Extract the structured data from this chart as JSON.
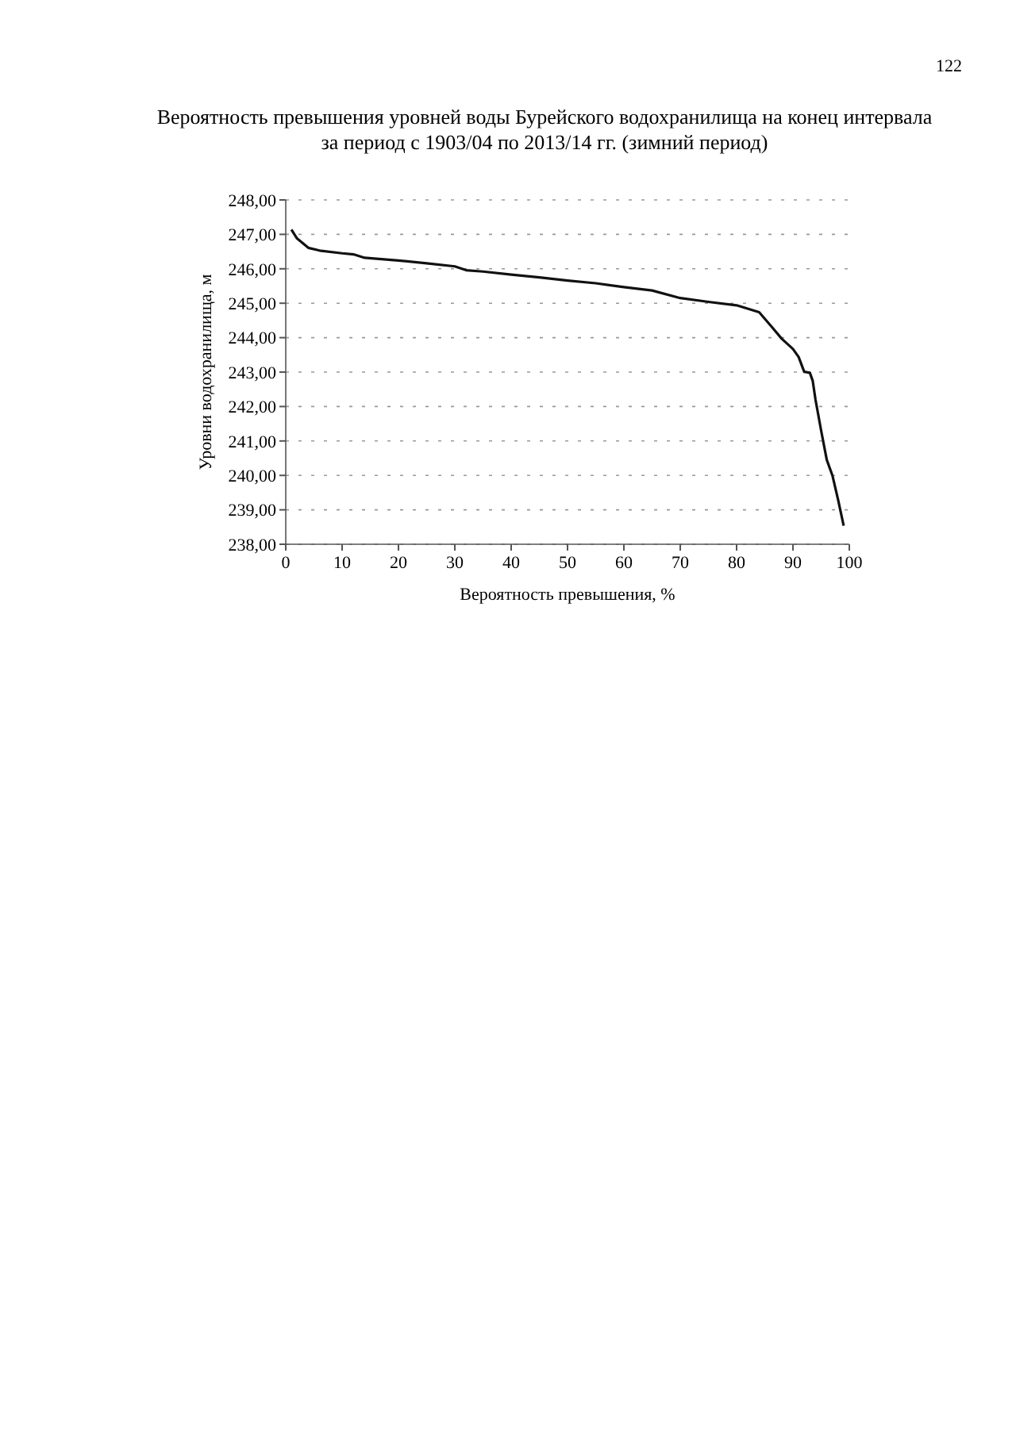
{
  "chart_data": {
    "type": "line",
    "title": "Вероятность превышения уровней воды Бурейского водохранилища на конец интервала\nза период с 1903/04 по 2013/14 гг. (зимний период)",
    "xlabel": "Вероятность превышения, %",
    "ylabel": "Уровни водохранилища, м",
    "annotations": [
      "122"
    ],
    "series": [
      {
        "color": "#111111",
        "x": [
          1,
          2,
          4,
          6,
          10,
          12,
          14,
          20,
          25,
          30,
          32,
          35,
          40,
          45,
          50,
          55,
          60,
          65,
          70,
          75,
          80,
          84,
          86,
          88,
          90,
          91,
          92,
          93,
          93.5,
          94,
          95,
          96,
          97,
          98,
          99
        ],
        "values": [
          247.14,
          246.88,
          246.61,
          246.53,
          246.45,
          246.42,
          246.32,
          246.24,
          246.16,
          246.07,
          245.96,
          245.92,
          245.83,
          245.75,
          245.66,
          245.58,
          245.47,
          245.37,
          245.15,
          245.04,
          244.94,
          244.74,
          244.36,
          243.97,
          243.67,
          243.44,
          243.01,
          242.98,
          242.75,
          242.2,
          241.3,
          240.45,
          240.0,
          239.3,
          238.54
        ]
      }
    ],
    "xlim": [
      0,
      100
    ],
    "xticks": [
      0,
      10,
      20,
      30,
      40,
      50,
      60,
      70,
      80,
      90,
      100
    ],
    "ylim": [
      238,
      248
    ],
    "yticks": [
      {
        "value": 238,
        "label": "238,00"
      },
      {
        "value": 239,
        "label": "239,00"
      },
      {
        "value": 240,
        "label": "240,00"
      },
      {
        "value": 241,
        "label": "241,00"
      },
      {
        "value": 242,
        "label": "242,00"
      },
      {
        "value": 243,
        "label": "243,00"
      },
      {
        "value": 244,
        "label": "244,00"
      },
      {
        "value": 245,
        "label": "245,00"
      },
      {
        "value": 246,
        "label": "246,00"
      },
      {
        "value": 247,
        "label": "247,00"
      },
      {
        "value": 248,
        "label": "248,00"
      }
    ],
    "grid": "y",
    "marker": "none",
    "line_style": "solid"
  }
}
